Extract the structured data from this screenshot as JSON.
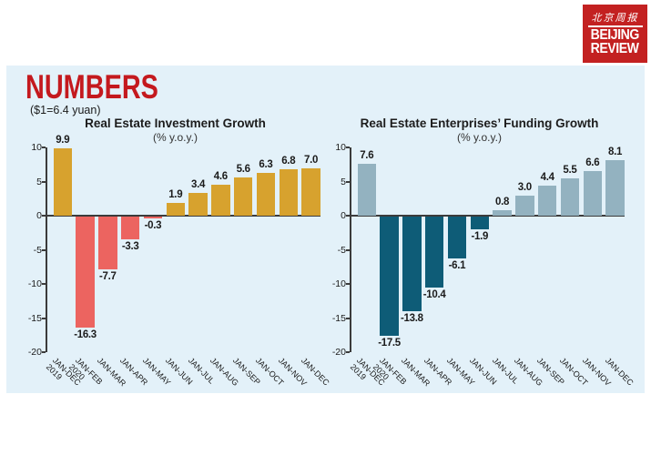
{
  "logo": {
    "chinese_title": "北京周报",
    "name_line1": "BEIJING",
    "name_line2": "REVIEW",
    "bg_color": "#C32121"
  },
  "header": {
    "title": "NUMBERS",
    "title_color": "#C4191E",
    "exchange_note": "($1=6.4 yuan)"
  },
  "panel": {
    "bg_color": "#E3F1F9"
  },
  "chart_data": [
    {
      "type": "bar",
      "title": "Real Estate Investment Growth",
      "subtitle": "(% y.o.y.)",
      "categories": [
        "JAN-DEC\n2019",
        "JAN-FEB\n2020",
        "JAN-MAR",
        "JAN-APR",
        "JAN-MAY",
        "JAN-JUN",
        "JAN-JUL",
        "JAN-AUG",
        "JAN-SEP",
        "JAN-OCT",
        "JAN-NOV",
        "JAN-DEC"
      ],
      "values": [
        9.9,
        -16.3,
        -7.7,
        -3.3,
        -0.3,
        1.9,
        3.4,
        4.6,
        5.6,
        6.3,
        6.8,
        7.0
      ],
      "value_labels": [
        "9.9",
        "-16.3",
        "-7.7",
        "-3.3",
        "-0.3",
        "1.9",
        "3.4",
        "4.6",
        "5.6",
        "6.3",
        "6.8",
        "7.0"
      ],
      "colors": {
        "positive": "#D7A22E",
        "negative": "#EC6460"
      },
      "ylim": [
        -20,
        10
      ],
      "yticks": [
        10,
        5,
        0,
        -5,
        -10,
        -15,
        -20
      ],
      "grid": false,
      "legend": "none"
    },
    {
      "type": "bar",
      "title": "Real Estate Enterprises’ Funding Growth",
      "subtitle": "(% y.o.y.)",
      "categories": [
        "JAN-DEC\n2019",
        "JAN-FEB\n2020",
        "JAN-MAR",
        "JAN-APR",
        "JAN-MAY",
        "JAN-JUN",
        "JAN-JUL",
        "JAN-AUG",
        "JAN-SEP",
        "JAN-OCT",
        "JAN-NOV",
        "JAN-DEC"
      ],
      "values": [
        7.6,
        -17.5,
        -13.8,
        -10.4,
        -6.1,
        -1.9,
        0.8,
        3.0,
        4.4,
        5.5,
        6.6,
        8.1
      ],
      "value_labels": [
        "7.6",
        "-17.5",
        "-13.8",
        "-10.4",
        "-6.1",
        "-1.9",
        "0.8",
        "3.0",
        "4.4",
        "5.5",
        "6.6",
        "8.1"
      ],
      "colors": {
        "positive": "#93B2C0",
        "negative": "#0E5C77"
      },
      "ylim": [
        -20,
        10
      ],
      "yticks": [
        10,
        5,
        0,
        -5,
        -10,
        -15,
        -20
      ],
      "grid": false,
      "legend": "none"
    }
  ]
}
